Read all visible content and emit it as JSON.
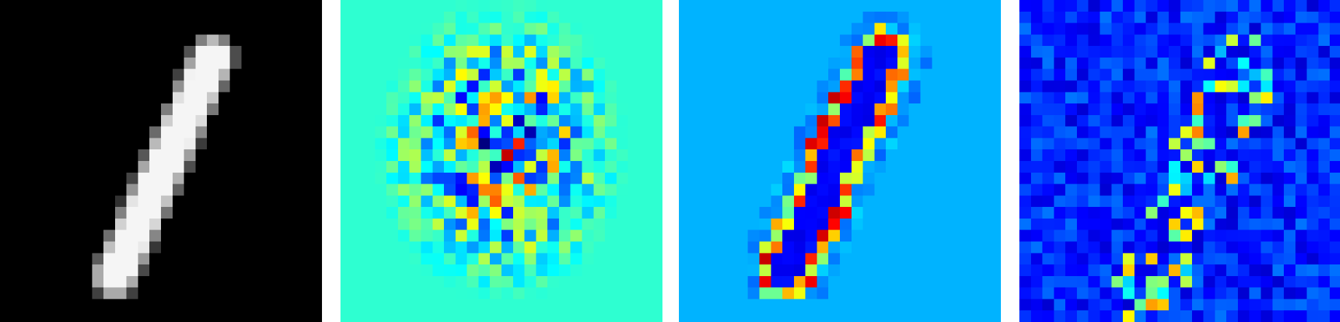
{
  "figure": {
    "panels": [
      {
        "id": "input-digit",
        "kind": "grayscale input image",
        "grid": 28,
        "colormap": "gray",
        "background": "#000000"
      },
      {
        "id": "saliency-map-1",
        "kind": "diverging heatmap",
        "grid": 28,
        "colormap": "jet",
        "background": "#69ff8f"
      },
      {
        "id": "saliency-map-2",
        "kind": "stroke-shaped heatmap",
        "grid": 28,
        "colormap": "jet",
        "background": "#0066ff"
      },
      {
        "id": "saliency-map-3",
        "kind": "noisy heatmap",
        "grid": 28,
        "colormap": "jet",
        "background": "#0000b0"
      }
    ]
  }
}
